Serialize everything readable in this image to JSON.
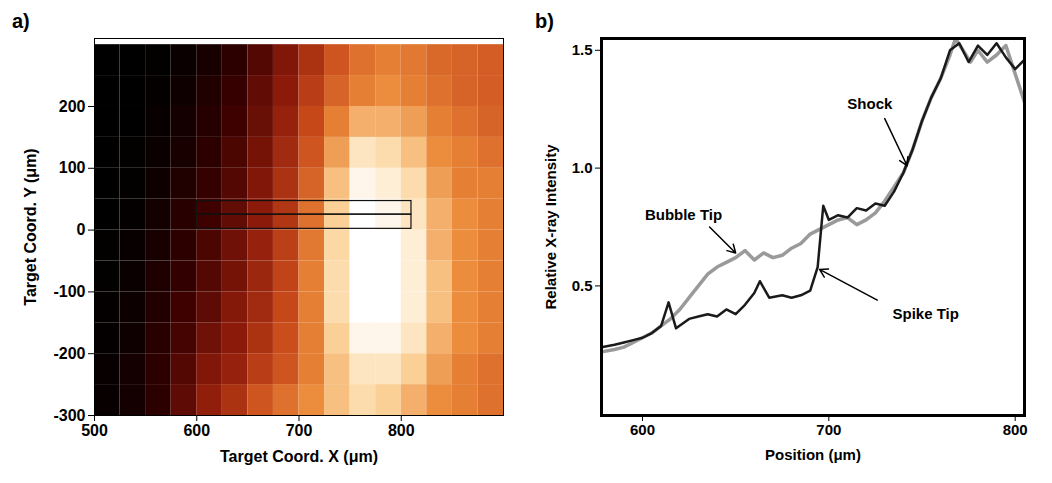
{
  "chart_data": [
    {
      "type": "heatmap",
      "panel_label": "a)",
      "x_label": "Target Coord. X (μm)",
      "y_label": "Target Coord. Y (μm)",
      "xlim": [
        500,
        900
      ],
      "xticks": [
        500,
        600,
        700,
        800
      ],
      "ylim": [
        -300,
        310
      ],
      "yticks": [
        -300,
        -200,
        -100,
        0,
        100,
        200
      ],
      "zlim": [
        0.12,
        1.5
      ],
      "cells": {
        "x": [
          500,
          525,
          550,
          575,
          600,
          625,
          650,
          675,
          700,
          725,
          750,
          775,
          800,
          825,
          850,
          875,
          900
        ],
        "y": [
          -300,
          -250,
          -200,
          -150,
          -100,
          -50,
          0,
          50,
          100,
          150,
          200,
          250,
          300
        ],
        "z": [
          [
            0.15,
            0.2,
            0.3,
            0.45,
            0.6,
            0.7,
            0.85,
            0.95,
            1.05,
            1.2,
            1.3,
            1.25,
            1.15,
            1.05,
            1.0,
            0.95
          ],
          [
            0.15,
            0.2,
            0.3,
            0.42,
            0.55,
            0.62,
            0.75,
            0.85,
            1.0,
            1.2,
            1.35,
            1.35,
            1.25,
            1.1,
            1.0,
            0.95
          ],
          [
            0.14,
            0.18,
            0.28,
            0.38,
            0.5,
            0.58,
            0.7,
            0.82,
            1.0,
            1.25,
            1.45,
            1.45,
            1.35,
            1.15,
            1.05,
            1.0
          ],
          [
            0.14,
            0.17,
            0.26,
            0.36,
            0.45,
            0.56,
            0.66,
            0.8,
            1.0,
            1.3,
            1.5,
            1.5,
            1.4,
            1.2,
            1.05,
            1.0
          ],
          [
            0.13,
            0.16,
            0.24,
            0.32,
            0.42,
            0.52,
            0.64,
            0.78,
            1.0,
            1.3,
            1.5,
            1.5,
            1.4,
            1.2,
            1.05,
            1.0
          ],
          [
            0.13,
            0.15,
            0.22,
            0.3,
            0.4,
            0.5,
            0.62,
            0.76,
            0.98,
            1.28,
            1.5,
            1.5,
            1.4,
            1.15,
            1.05,
            1.0
          ],
          [
            0.12,
            0.14,
            0.2,
            0.28,
            0.36,
            0.46,
            0.58,
            0.72,
            0.95,
            1.25,
            1.5,
            1.45,
            1.35,
            1.15,
            1.05,
            1.0
          ],
          [
            0.12,
            0.13,
            0.18,
            0.25,
            0.33,
            0.42,
            0.55,
            0.7,
            0.9,
            1.2,
            1.45,
            1.4,
            1.3,
            1.1,
            1.0,
            1.0
          ],
          [
            0.12,
            0.13,
            0.16,
            0.22,
            0.3,
            0.4,
            0.52,
            0.66,
            0.85,
            1.1,
            1.35,
            1.3,
            1.2,
            1.05,
            1.0,
            0.95
          ],
          [
            0.12,
            0.12,
            0.15,
            0.2,
            0.27,
            0.36,
            0.48,
            0.62,
            0.8,
            1.0,
            1.15,
            1.15,
            1.1,
            1.0,
            0.95,
            0.9
          ],
          [
            0.12,
            0.12,
            0.14,
            0.18,
            0.25,
            0.34,
            0.46,
            0.58,
            0.75,
            0.9,
            1.0,
            1.05,
            1.0,
            0.95,
            0.9,
            0.88
          ],
          [
            0.12,
            0.12,
            0.13,
            0.16,
            0.22,
            0.3,
            0.42,
            0.55,
            0.7,
            0.85,
            0.95,
            1.0,
            0.98,
            0.92,
            0.9,
            0.88
          ]
        ]
      },
      "boxes": [
        {
          "x": [
            600,
            810
          ],
          "y": [
            25,
            47
          ]
        },
        {
          "x": [
            600,
            810
          ],
          "y": [
            2,
            25
          ]
        }
      ]
    },
    {
      "type": "line",
      "panel_label": "b)",
      "x_label": "Position (μm)",
      "y_label": "Relative X-ray Intensity",
      "xlim": [
        578,
        805
      ],
      "xticks": [
        600,
        700,
        800
      ],
      "ylim": [
        -0.05,
        1.55
      ],
      "yticks": [
        0.5,
        {
          "value": 1,
          "label": "1.0"
        },
        1.5
      ],
      "series": [
        {
          "name": "Bubble Tip",
          "color": "#9a9a9a",
          "line_style": "solid",
          "x": [
            578,
            585,
            590,
            595,
            600,
            605,
            610,
            615,
            620,
            625,
            630,
            635,
            640,
            645,
            650,
            655,
            660,
            665,
            670,
            675,
            680,
            685,
            690,
            695,
            700,
            705,
            710,
            715,
            720,
            725,
            730,
            735,
            740,
            745,
            750,
            755,
            760,
            765,
            768,
            772,
            776,
            780,
            785,
            790,
            795,
            800,
            805
          ],
          "values": [
            0.22,
            0.23,
            0.24,
            0.26,
            0.28,
            0.3,
            0.33,
            0.36,
            0.4,
            0.45,
            0.5,
            0.55,
            0.58,
            0.6,
            0.62,
            0.65,
            0.61,
            0.64,
            0.62,
            0.63,
            0.66,
            0.68,
            0.72,
            0.74,
            0.76,
            0.78,
            0.79,
            0.76,
            0.78,
            0.81,
            0.86,
            0.92,
            0.98,
            1.08,
            1.2,
            1.3,
            1.38,
            1.48,
            1.55,
            1.5,
            1.45,
            1.5,
            1.45,
            1.48,
            1.52,
            1.4,
            1.28
          ],
          "annotation": {
            "x": 622,
            "y": 0.8,
            "arrow": {
              "x1": 636,
              "y1": 0.75,
              "x2": 650,
              "y2": 0.64
            }
          }
        },
        {
          "name": "Spike Tip",
          "color": "#1a1a1a",
          "line_style": "solid",
          "x": [
            578,
            585,
            590,
            595,
            600,
            605,
            610,
            614,
            618,
            625,
            630,
            635,
            640,
            645,
            650,
            655,
            660,
            663,
            668,
            675,
            680,
            685,
            690,
            694,
            697,
            700,
            705,
            710,
            715,
            720,
            725,
            730,
            735,
            740,
            745,
            750,
            755,
            760,
            765,
            770,
            775,
            780,
            785,
            790,
            795,
            800,
            805
          ],
          "values": [
            0.24,
            0.25,
            0.26,
            0.27,
            0.28,
            0.3,
            0.33,
            0.43,
            0.32,
            0.36,
            0.37,
            0.38,
            0.37,
            0.4,
            0.38,
            0.42,
            0.47,
            0.52,
            0.45,
            0.46,
            0.45,
            0.46,
            0.48,
            0.58,
            0.84,
            0.78,
            0.8,
            0.79,
            0.83,
            0.82,
            0.85,
            0.84,
            0.9,
            0.98,
            1.08,
            1.2,
            1.3,
            1.38,
            1.5,
            1.53,
            1.45,
            1.52,
            1.48,
            1.53,
            1.47,
            1.42,
            1.46
          ],
          "annotation": {
            "x": 752,
            "y": 0.38,
            "arrow": {
              "x1": 726,
              "y1": 0.44,
              "x2": 695,
              "y2": 0.57
            }
          }
        }
      ],
      "annotations": [
        {
          "text": "Shock",
          "x": 722,
          "y": 1.27,
          "arrow": {
            "x1": 730,
            "y1": 1.21,
            "x2": 742,
            "y2": 1.01
          }
        }
      ]
    }
  ]
}
